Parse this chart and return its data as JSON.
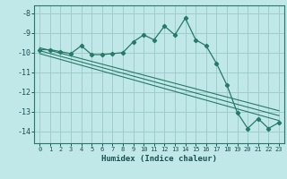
{
  "xlabel": "Humidex (Indice chaleur)",
  "background_color": "#c0e8e8",
  "grid_color": "#a0cccc",
  "line_color": "#267a6a",
  "spine_color": "#267a6a",
  "tick_color": "#1a5050",
  "xlim": [
    -0.5,
    23.5
  ],
  "ylim": [
    -14.6,
    -7.6
  ],
  "yticks": [
    -8,
    -9,
    -10,
    -11,
    -12,
    -13,
    -14
  ],
  "xticks": [
    0,
    1,
    2,
    3,
    4,
    5,
    6,
    7,
    8,
    9,
    10,
    11,
    12,
    13,
    14,
    15,
    16,
    17,
    18,
    19,
    20,
    21,
    22,
    23
  ],
  "main_x": [
    0,
    1,
    2,
    3,
    4,
    5,
    6,
    7,
    8,
    9,
    10,
    11,
    12,
    13,
    14,
    15,
    16,
    17,
    18,
    19,
    20,
    21,
    22,
    23
  ],
  "main_y": [
    -9.85,
    -9.85,
    -9.95,
    -10.05,
    -9.65,
    -10.1,
    -10.1,
    -10.05,
    -10.0,
    -9.45,
    -9.1,
    -9.35,
    -8.65,
    -9.1,
    -8.25,
    -9.35,
    -9.65,
    -10.55,
    -11.65,
    -13.05,
    -13.85,
    -13.35,
    -13.85,
    -13.55
  ],
  "line1_x": [
    0,
    23
  ],
  "line1_y": [
    -9.75,
    -12.95
  ],
  "line2_x": [
    0,
    23
  ],
  "line2_y": [
    -9.9,
    -13.2
  ],
  "line3_x": [
    0,
    23
  ],
  "line3_y": [
    -10.05,
    -13.45
  ]
}
